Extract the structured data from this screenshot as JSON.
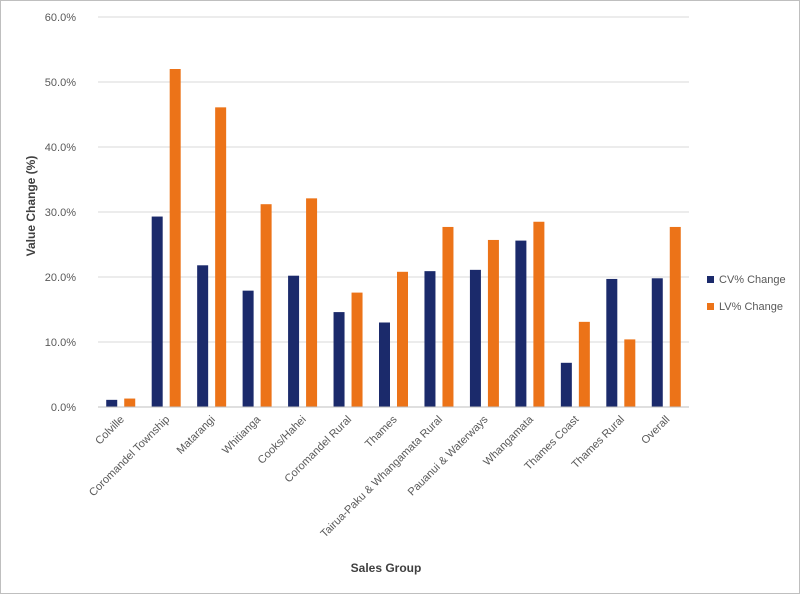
{
  "colors": {
    "cv": "#1b2a6b",
    "lv": "#ec7318",
    "grid": "#d9d9d9",
    "axis": "#bfbfbf"
  },
  "chart_data": {
    "type": "bar",
    "xlabel": "Sales Group",
    "ylabel": "Value Change (%)",
    "ylim": [
      0,
      60
    ],
    "y_ticks": [
      "0.0%",
      "10.0%",
      "20.0%",
      "30.0%",
      "40.0%",
      "50.0%",
      "60.0%"
    ],
    "grid": true,
    "legend_position": "right",
    "categories": [
      "Colville",
      "Coromandel Township",
      "Matarangi",
      "Whitianga",
      "Cooks/Hahei",
      "Coromandel Rural",
      "Thames",
      "Tairua-Paku & Whangamata Rural",
      "Pauanui & Waterways",
      "Whangamata",
      "Thames Coast",
      "Thames Rural",
      "Overall"
    ],
    "series": [
      {
        "name": "CV% Change",
        "values": [
          1.1,
          29.3,
          21.8,
          17.9,
          20.2,
          14.6,
          13.0,
          20.9,
          21.1,
          25.6,
          6.8,
          19.7,
          19.8
        ]
      },
      {
        "name": "LV% Change",
        "values": [
          1.3,
          52.0,
          46.1,
          31.2,
          32.1,
          17.6,
          20.8,
          27.7,
          25.7,
          28.5,
          13.1,
          10.4,
          27.7
        ]
      }
    ]
  }
}
